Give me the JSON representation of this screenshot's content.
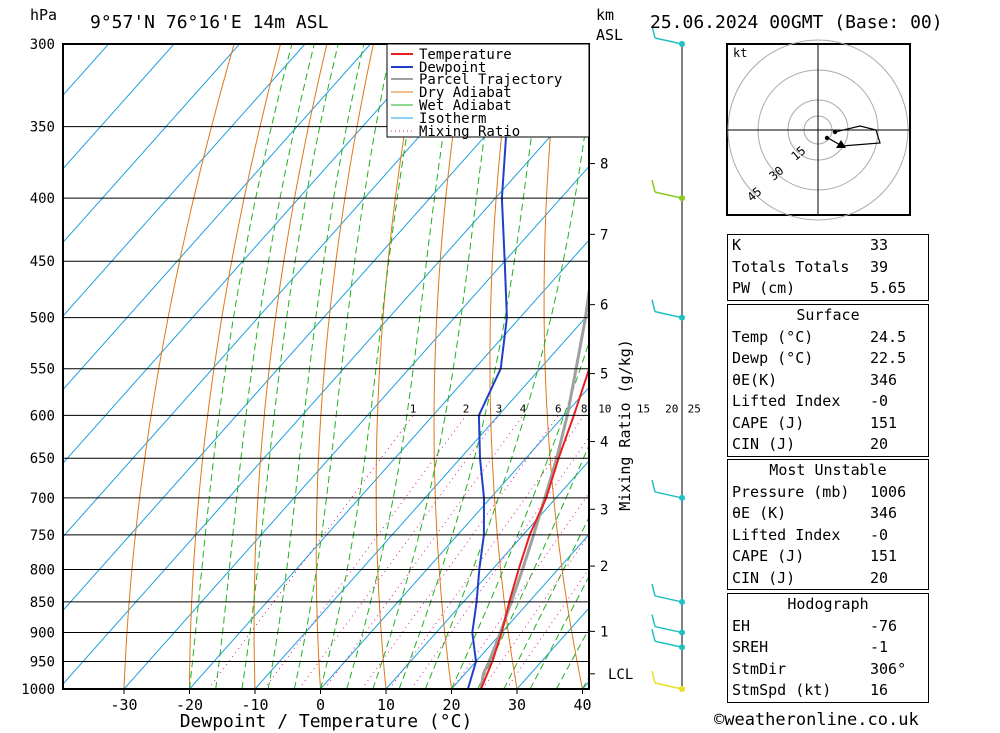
{
  "header": {
    "pressure_unit": "hPa",
    "location": "9°57'N 76°16'E 14m ASL",
    "height_unit_km": "km",
    "height_unit_asl": "ASL",
    "datetime": "25.06.2024 00GMT (Base: 00)"
  },
  "colors": {
    "temperature": "#e8211e",
    "dewpoint": "#1f3fc8",
    "parcel": "#a0a0a0",
    "dry_adiabat": "#e07818",
    "wet_adiabat": "#20b020",
    "isotherm": "#1ea0e0",
    "mixing_ratio": "#e020a0",
    "wind_green": "#8bc820",
    "wind_cyan": "#20c0c0",
    "wind_yellow": "#e8e020"
  },
  "chart_data": {
    "type": "skew-t",
    "xlabel": "Dewpoint / Temperature (°C)",
    "ylabel_right": "Mixing Ratio (g/kg)",
    "pressure_levels": [
      300,
      350,
      400,
      450,
      500,
      550,
      600,
      650,
      700,
      750,
      800,
      850,
      900,
      950,
      1000
    ],
    "temp_ticks": [
      -30,
      -20,
      -10,
      0,
      10,
      20,
      30,
      40
    ],
    "xlim": [
      -40,
      40
    ],
    "ylim_hpa": [
      1000,
      300
    ],
    "height_km_ticks": [
      {
        "km": "8",
        "p": 375
      },
      {
        "km": "7",
        "p": 428
      },
      {
        "km": "6",
        "p": 488
      },
      {
        "km": "5",
        "p": 555
      },
      {
        "km": "4",
        "p": 630
      },
      {
        "km": "3",
        "p": 715
      },
      {
        "km": "2",
        "p": 795
      },
      {
        "km": "1",
        "p": 898
      },
      {
        "km": "LCL",
        "p": 972
      }
    ],
    "mixing_ratio_labels": [
      "1",
      "2",
      "3",
      "4",
      "6",
      "8",
      "10",
      "15",
      "20",
      "25"
    ],
    "mixing_ratio_values": [
      1,
      2,
      3,
      4,
      6,
      8,
      10,
      15,
      20,
      25
    ],
    "legend": [
      "Temperature",
      "Dewpoint",
      "Parcel Trajectory",
      "Dry Adiabat",
      "Wet Adiabat",
      "Isotherm",
      "Mixing Ratio"
    ],
    "temperature_profile": {
      "p": [
        1000,
        950,
        900,
        850,
        800,
        750,
        700,
        650,
        600,
        550,
        500,
        450,
        400,
        350,
        300
      ],
      "t": [
        24.5,
        22.5,
        20,
        17,
        14,
        11,
        8.5,
        5,
        1.5,
        -2.5,
        -7,
        -13,
        -19.5,
        -28,
        -38
      ]
    },
    "dewpoint_profile": {
      "p": [
        1000,
        950,
        900,
        850,
        800,
        750,
        700,
        650,
        600,
        550,
        500,
        450,
        400,
        350,
        300
      ],
      "t": [
        22.5,
        20,
        15.5,
        12,
        8,
        4,
        -1,
        -7,
        -13,
        -16,
        -22,
        -30,
        -39,
        -48,
        -58
      ]
    },
    "parcel_profile": {
      "p": [
        1000,
        972,
        950,
        900,
        850,
        800,
        750,
        700,
        650,
        600,
        550,
        500,
        450,
        400,
        350,
        300
      ],
      "t": [
        24.5,
        22.8,
        22,
        19.8,
        17.3,
        14.6,
        11.6,
        8.3,
        4.7,
        0.5,
        -4.5,
        -10,
        -16.5,
        -24,
        -33,
        -44
      ]
    }
  },
  "hodograph": {
    "unit": "kt",
    "ring_labels": [
      "15",
      "30",
      "45"
    ]
  },
  "indices": [
    {
      "label": "K",
      "value": "33"
    },
    {
      "label": "Totals Totals",
      "value": "39"
    },
    {
      "label": "PW (cm)",
      "value": "5.65"
    }
  ],
  "surface": {
    "title": "Surface",
    "rows": [
      {
        "label": "Temp (°C)",
        "value": "24.5"
      },
      {
        "label": "Dewp (°C)",
        "value": "22.5"
      },
      {
        "label": "θE(K)",
        "value": "346"
      },
      {
        "label": "Lifted Index",
        "value": "-0"
      },
      {
        "label": "CAPE (J)",
        "value": "151"
      },
      {
        "label": "CIN (J)",
        "value": "20"
      }
    ]
  },
  "most_unstable": {
    "title": "Most Unstable",
    "rows": [
      {
        "label": "Pressure (mb)",
        "value": "1006"
      },
      {
        "label": "θE (K)",
        "value": "346"
      },
      {
        "label": "Lifted Index",
        "value": "-0"
      },
      {
        "label": "CAPE (J)",
        "value": "151"
      },
      {
        "label": "CIN (J)",
        "value": "20"
      }
    ]
  },
  "hodograph_table": {
    "title": "Hodograph",
    "rows": [
      {
        "label": "EH",
        "value": "-76"
      },
      {
        "label": "SREH",
        "value": "-1"
      },
      {
        "label": "StmDir",
        "value": "306°"
      },
      {
        "label": "StmSpd (kt)",
        "value": "16"
      }
    ]
  },
  "footer": "©weatheronline.co.uk"
}
